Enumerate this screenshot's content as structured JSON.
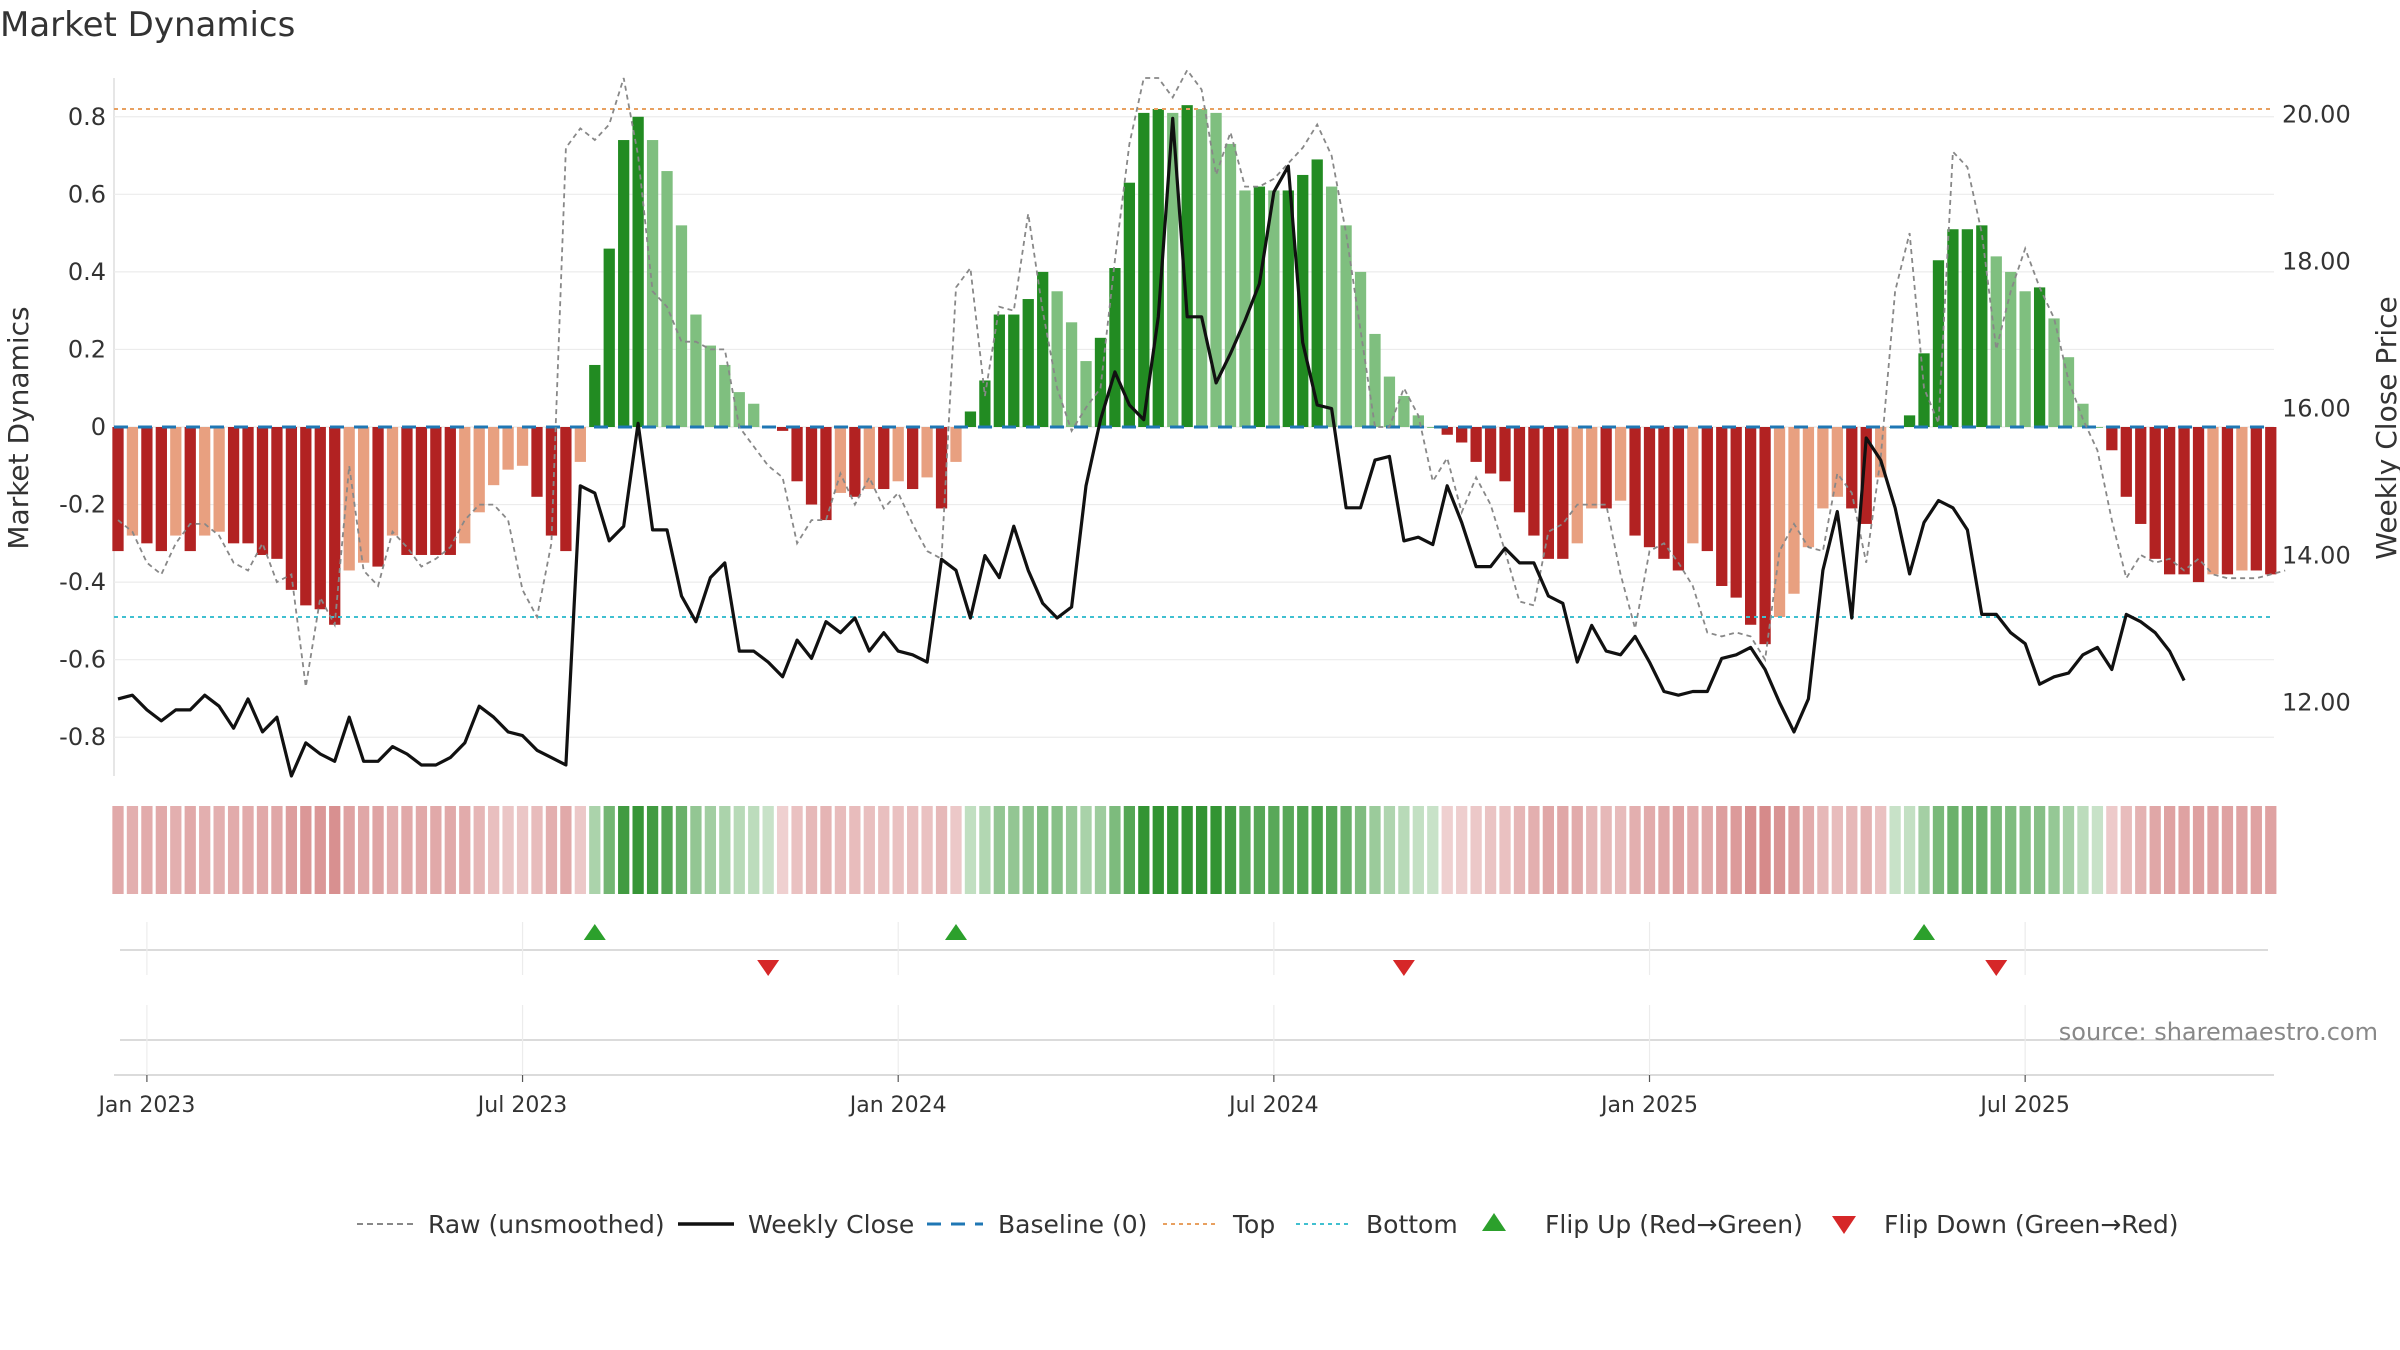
{
  "chart_data": {
    "type": "bar",
    "title": "Market Dynamics",
    "ylabel_left": "Market Dynamics",
    "ylabel_right": "Weekly Close Price",
    "ylim_left": [
      -0.9,
      0.9
    ],
    "ylim_right": [
      11.0,
      20.5
    ],
    "yticks_left": [
      "0.8",
      "0.6",
      "0.4",
      "0.2",
      "0",
      "-0.2",
      "-0.4",
      "-0.6",
      "-0.8"
    ],
    "yticks_left_values": [
      0.8,
      0.6,
      0.4,
      0.2,
      0,
      -0.2,
      -0.4,
      -0.6,
      -0.8
    ],
    "yticks_right": [
      "20.00",
      "18.00",
      "16.00",
      "14.00",
      "12.00"
    ],
    "yticks_right_values": [
      20,
      18,
      16,
      14,
      12
    ],
    "xticks": [
      "Jan 2023",
      "Jul 2023",
      "Jan 2024",
      "Jul 2024",
      "Jan 2025",
      "Jul 2025"
    ],
    "xticks_week_index": [
      0,
      26,
      52,
      78,
      104,
      130
    ],
    "top_line": 0.82,
    "bottom_line": -0.49,
    "baseline": 0,
    "start_week_offset": -2,
    "dynamics": [
      -0.32,
      -0.28,
      -0.3,
      -0.32,
      -0.28,
      -0.32,
      -0.28,
      -0.27,
      -0.3,
      -0.3,
      -0.33,
      -0.34,
      -0.42,
      -0.46,
      -0.47,
      -0.51,
      -0.37,
      -0.35,
      -0.36,
      -0.28,
      -0.33,
      -0.33,
      -0.33,
      -0.33,
      -0.3,
      -0.22,
      -0.15,
      -0.11,
      -0.1,
      -0.18,
      -0.28,
      -0.32,
      -0.09,
      0.16,
      0.46,
      0.74,
      0.8,
      0.74,
      0.66,
      0.52,
      0.29,
      0.21,
      0.16,
      0.09,
      0.06,
      0.0,
      -0.01,
      -0.14,
      -0.2,
      -0.24,
      -0.17,
      -0.18,
      -0.16,
      -0.16,
      -0.14,
      -0.16,
      -0.13,
      -0.21,
      -0.09,
      0.04,
      0.12,
      0.29,
      0.29,
      0.33,
      0.4,
      0.35,
      0.27,
      0.17,
      0.23,
      0.41,
      0.63,
      0.81,
      0.82,
      0.81,
      0.83,
      0.82,
      0.81,
      0.73,
      0.61,
      0.62,
      0.61,
      0.61,
      0.65,
      0.69,
      0.62,
      0.52,
      0.4,
      0.24,
      0.13,
      0.08,
      0.03,
      0.0,
      -0.02,
      -0.04,
      -0.09,
      -0.12,
      -0.14,
      -0.22,
      -0.28,
      -0.34,
      -0.34,
      -0.3,
      -0.21,
      -0.21,
      -0.19,
      -0.28,
      -0.31,
      -0.34,
      -0.37,
      -0.3,
      -0.32,
      -0.41,
      -0.44,
      -0.51,
      -0.56,
      -0.49,
      -0.43,
      -0.31,
      -0.21,
      -0.18,
      -0.21,
      -0.25,
      -0.13,
      0.0,
      0.03,
      0.19,
      0.43,
      0.51,
      0.51,
      0.52,
      0.44,
      0.4,
      0.35,
      0.36,
      0.28,
      0.18,
      0.06,
      0.0,
      -0.06,
      -0.18,
      -0.25,
      -0.34,
      -0.38,
      -0.38,
      -0.4,
      -0.38,
      -0.38,
      -0.37,
      -0.37,
      -0.38
    ],
    "raw_unsmoothed": [
      -0.24,
      -0.27,
      -0.35,
      -0.38,
      -0.3,
      -0.25,
      -0.25,
      -0.28,
      -0.35,
      -0.37,
      -0.3,
      -0.4,
      -0.38,
      -0.67,
      -0.44,
      -0.51,
      -0.1,
      -0.37,
      -0.41,
      -0.27,
      -0.31,
      -0.36,
      -0.34,
      -0.31,
      -0.24,
      -0.2,
      -0.2,
      -0.24,
      -0.42,
      -0.49,
      -0.3,
      0.72,
      0.77,
      0.74,
      0.78,
      0.9,
      0.7,
      0.35,
      0.31,
      0.22,
      0.22,
      0.2,
      0.2,
      0.0,
      -0.05,
      -0.1,
      -0.13,
      -0.3,
      -0.24,
      -0.24,
      -0.12,
      -0.2,
      -0.13,
      -0.21,
      -0.17,
      -0.25,
      -0.32,
      -0.34,
      0.36,
      0.41,
      0.08,
      0.31,
      0.3,
      0.55,
      0.3,
      0.1,
      -0.01,
      0.05,
      0.1,
      0.43,
      0.73,
      0.9,
      0.9,
      0.85,
      0.92,
      0.87,
      0.65,
      0.76,
      0.62,
      0.62,
      0.64,
      0.68,
      0.72,
      0.78,
      0.7,
      0.5,
      0.25,
      0.0,
      0.0,
      0.1,
      0.03,
      -0.14,
      -0.08,
      -0.22,
      -0.13,
      -0.2,
      -0.32,
      -0.45,
      -0.46,
      -0.27,
      -0.25,
      -0.2,
      -0.2,
      -0.2,
      -0.38,
      -0.52,
      -0.32,
      -0.3,
      -0.35,
      -0.41,
      -0.53,
      -0.54,
      -0.53,
      -0.54,
      -0.6,
      -0.32,
      -0.25,
      -0.31,
      -0.32,
      -0.12,
      -0.17,
      -0.35,
      -0.08,
      0.35,
      0.5,
      0.1,
      0.01,
      0.71,
      0.67,
      0.5,
      0.2,
      0.35,
      0.46,
      0.36,
      0.28,
      0.12,
      0.02,
      -0.06,
      -0.24,
      -0.39,
      -0.33,
      -0.35,
      -0.34,
      -0.37,
      -0.34,
      -0.38,
      -0.39,
      -0.39,
      -0.39,
      -0.38,
      -0.37
    ],
    "weekly_close": [
      12.05,
      12.1,
      11.9,
      11.75,
      11.9,
      11.9,
      12.1,
      11.95,
      11.65,
      12.05,
      11.6,
      11.8,
      11.0,
      11.45,
      11.3,
      11.2,
      11.8,
      11.2,
      11.2,
      11.4,
      11.3,
      11.15,
      11.15,
      11.25,
      11.45,
      11.95,
      11.8,
      11.6,
      11.55,
      11.35,
      11.25,
      11.15,
      14.95,
      14.85,
      14.2,
      14.4,
      15.8,
      14.35,
      14.35,
      13.45,
      13.1,
      13.7,
      13.9,
      12.7,
      12.7,
      12.55,
      12.35,
      12.85,
      12.6,
      13.1,
      12.95,
      13.15,
      12.7,
      12.95,
      12.7,
      12.65,
      12.55,
      13.95,
      13.8,
      13.15,
      14.0,
      13.7,
      14.4,
      13.8,
      13.35,
      13.15,
      13.3,
      14.95,
      15.85,
      16.5,
      16.05,
      15.85,
      17.25,
      19.95,
      17.25,
      17.25,
      16.35,
      16.75,
      17.2,
      17.7,
      18.95,
      19.3,
      16.9,
      16.05,
      16.0,
      14.65,
      14.65,
      15.3,
      15.35,
      14.2,
      14.25,
      14.15,
      14.95,
      14.45,
      13.85,
      13.85,
      14.1,
      13.9,
      13.9,
      13.45,
      13.35,
      12.55,
      13.05,
      12.7,
      12.65,
      12.9,
      12.55,
      12.15,
      12.1,
      12.15,
      12.15,
      12.6,
      12.65,
      12.75,
      12.45,
      12.0,
      11.6,
      12.05,
      13.8,
      14.6,
      13.15,
      15.6,
      15.3,
      14.65,
      13.75,
      14.45,
      14.75,
      14.65,
      14.35,
      13.2,
      13.2,
      12.95,
      12.8,
      12.25,
      12.35,
      12.4,
      12.65,
      12.75,
      12.45,
      13.2,
      13.1,
      12.95,
      12.7,
      12.3
    ],
    "flip_up_week_index": [
      33,
      58,
      125
    ],
    "flip_down_week_index": [
      45,
      89,
      130
    ],
    "legend": {
      "raw": "Raw (unsmoothed)",
      "close": "Weekly Close",
      "baseline": "Baseline (0)",
      "top": "Top",
      "bottom": "Bottom",
      "flip_up": "Flip Up (Red→Green)",
      "flip_down": "Flip Down (Green→Red)"
    },
    "legend_position": "bottom-center",
    "source": "source: sharemaestro.com",
    "colors": {
      "strong_green": "#228b22",
      "light_green": "#7fbf7f",
      "strong_red": "#b22222",
      "light_red": "#e8a080",
      "raw_line": "#888888",
      "close_line": "#111111",
      "baseline": "#1f77b4",
      "top_line": "#e8a060",
      "bottom_line": "#40c0d0",
      "flip_up": "#2ca02c",
      "flip_down": "#d62728"
    }
  }
}
